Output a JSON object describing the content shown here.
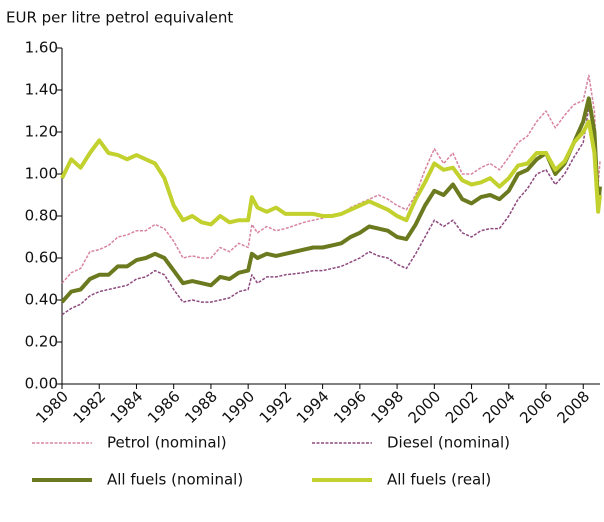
{
  "chart_data": {
    "type": "line",
    "y_axis_label": "EUR per litre petrol equivalent",
    "x": [
      1980,
      1980.5,
      1981,
      1981.5,
      1982,
      1982.5,
      1983,
      1983.5,
      1984,
      1984.5,
      1985,
      1985.5,
      1986,
      1986.5,
      1987,
      1987.5,
      1988,
      1988.5,
      1989,
      1989.5,
      1990,
      1990.2,
      1990.5,
      1991,
      1991.5,
      1992,
      1993,
      1993.5,
      1994,
      1994.5,
      1995,
      1995.5,
      1996,
      1996.5,
      1997,
      1997.5,
      1998,
      1998.5,
      1999,
      1999.5,
      2000,
      2000.5,
      2001,
      2001.5,
      2002,
      2002.5,
      2003,
      2003.5,
      2004,
      2004.5,
      2005,
      2005.5,
      2006,
      2006.5,
      2007,
      2007.5,
      2008,
      2008.3,
      2008.6,
      2008.8,
      2008.9
    ],
    "series": [
      {
        "name": "Petrol (nominal)",
        "color": "#d9849f",
        "line_width": 1.5,
        "dashed": true,
        "values": [
          0.48,
          0.53,
          0.55,
          0.63,
          0.64,
          0.66,
          0.7,
          0.71,
          0.73,
          0.73,
          0.76,
          0.74,
          0.68,
          0.6,
          0.61,
          0.6,
          0.6,
          0.65,
          0.63,
          0.67,
          0.65,
          0.76,
          0.72,
          0.75,
          0.73,
          0.74,
          0.77,
          0.78,
          0.79,
          0.8,
          0.81,
          0.84,
          0.86,
          0.88,
          0.9,
          0.88,
          0.85,
          0.83,
          0.9,
          1.02,
          1.12,
          1.05,
          1.1,
          1.0,
          1.0,
          1.03,
          1.05,
          1.02,
          1.08,
          1.15,
          1.18,
          1.25,
          1.3,
          1.22,
          1.28,
          1.33,
          1.35,
          1.47,
          1.3,
          0.95,
          1.06
        ]
      },
      {
        "name": "Diesel (nominal)",
        "color": "#8e4a7f",
        "line_width": 1.5,
        "dashed": true,
        "values": [
          0.33,
          0.36,
          0.38,
          0.42,
          0.44,
          0.45,
          0.46,
          0.47,
          0.5,
          0.51,
          0.54,
          0.52,
          0.45,
          0.39,
          0.4,
          0.39,
          0.39,
          0.4,
          0.41,
          0.44,
          0.45,
          0.52,
          0.48,
          0.51,
          0.51,
          0.52,
          0.53,
          0.54,
          0.54,
          0.55,
          0.56,
          0.58,
          0.6,
          0.63,
          0.61,
          0.6,
          0.57,
          0.55,
          0.62,
          0.7,
          0.78,
          0.75,
          0.78,
          0.72,
          0.7,
          0.73,
          0.74,
          0.74,
          0.8,
          0.88,
          0.93,
          1.0,
          1.02,
          0.95,
          1.0,
          1.08,
          1.15,
          1.32,
          1.18,
          0.82,
          0.88
        ]
      },
      {
        "name": "All fuels (nominal)",
        "color": "#6b7a1f",
        "line_width": 4,
        "dashed": false,
        "values": [
          0.39,
          0.44,
          0.45,
          0.5,
          0.52,
          0.52,
          0.56,
          0.56,
          0.59,
          0.6,
          0.62,
          0.6,
          0.54,
          0.48,
          0.49,
          0.48,
          0.47,
          0.51,
          0.5,
          0.53,
          0.54,
          0.62,
          0.6,
          0.62,
          0.61,
          0.62,
          0.64,
          0.65,
          0.65,
          0.66,
          0.67,
          0.7,
          0.72,
          0.75,
          0.74,
          0.73,
          0.7,
          0.69,
          0.76,
          0.85,
          0.92,
          0.9,
          0.95,
          0.88,
          0.86,
          0.89,
          0.9,
          0.88,
          0.92,
          1.0,
          1.02,
          1.07,
          1.1,
          1.0,
          1.05,
          1.15,
          1.25,
          1.36,
          1.2,
          0.85,
          0.94
        ]
      },
      {
        "name": "All fuels (real)",
        "color": "#c3d12f",
        "line_width": 4,
        "dashed": false,
        "values": [
          0.98,
          1.07,
          1.03,
          1.1,
          1.16,
          1.1,
          1.09,
          1.07,
          1.09,
          1.07,
          1.05,
          0.98,
          0.85,
          0.78,
          0.8,
          0.77,
          0.76,
          0.8,
          0.77,
          0.78,
          0.78,
          0.89,
          0.84,
          0.82,
          0.84,
          0.81,
          0.81,
          0.81,
          0.8,
          0.8,
          0.81,
          0.83,
          0.85,
          0.87,
          0.85,
          0.83,
          0.8,
          0.78,
          0.88,
          0.96,
          1.05,
          1.02,
          1.03,
          0.97,
          0.95,
          0.96,
          0.98,
          0.94,
          0.98,
          1.04,
          1.05,
          1.1,
          1.1,
          1.02,
          1.06,
          1.15,
          1.2,
          1.25,
          1.1,
          0.82,
          0.9
        ]
      }
    ],
    "xlim": [
      1980,
      2008.9
    ],
    "xticks": [
      1980,
      1982,
      1984,
      1986,
      1988,
      1990,
      1992,
      1994,
      1996,
      1998,
      2000,
      2002,
      2004,
      2006,
      2008
    ],
    "ylim": [
      0,
      1.6
    ],
    "yticks": [
      {
        "value": 0,
        "label": "0.00"
      },
      {
        "value": 0.2,
        "label": "0.20"
      },
      {
        "value": 0.4,
        "label": "0.40"
      },
      {
        "value": 0.6,
        "label": "0.60"
      },
      {
        "value": 0.8,
        "label": "0.80"
      },
      {
        "value": 1.0,
        "label": "1.00"
      },
      {
        "value": 1.2,
        "label": "1.20"
      },
      {
        "value": 1.4,
        "label": "1.40"
      },
      {
        "value": 1.6,
        "label": "1.60"
      }
    ],
    "grid": false
  }
}
